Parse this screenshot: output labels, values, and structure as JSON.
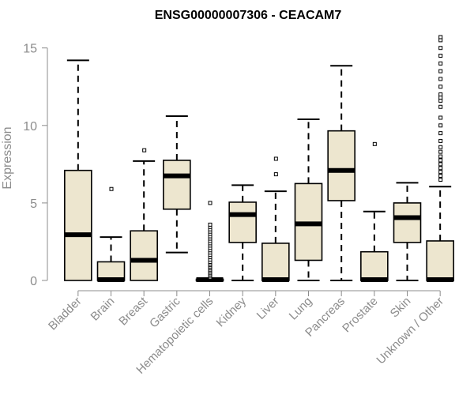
{
  "chart_data": {
    "type": "boxplot",
    "title": "ENSG00000007306 - CEACAM7",
    "xlabel": "",
    "ylabel": "Expression",
    "ylim": [
      0,
      15.8
    ],
    "yticks": [
      0,
      5,
      10,
      15
    ],
    "grid": false,
    "box_fill": "#ede6cf",
    "outline_color": "#000000",
    "axis_color": "#8c8c8c",
    "categories": [
      "Bladder",
      "Brain",
      "Breast",
      "Gastric",
      "Hematopoietic cells",
      "Kidney",
      "Liver",
      "Lung",
      "Pancreas",
      "Prostate",
      "Skin",
      "Unknown / Other"
    ],
    "boxes": [
      {
        "name": "Bladder",
        "whisker_low": 0,
        "q1": 0,
        "median": 2.95,
        "q3": 7.1,
        "whisker_high": 14.2,
        "outliers": []
      },
      {
        "name": "Brain",
        "whisker_low": 0,
        "q1": 0,
        "median": 0.05,
        "q3": 1.2,
        "whisker_high": 2.8,
        "outliers": [
          5.9
        ]
      },
      {
        "name": "Breast",
        "whisker_low": 0,
        "q1": 0,
        "median": 1.3,
        "q3": 3.2,
        "whisker_high": 7.7,
        "outliers": [
          8.4
        ]
      },
      {
        "name": "Gastric",
        "whisker_low": 1.8,
        "q1": 4.6,
        "median": 6.75,
        "q3": 7.75,
        "whisker_high": 10.6,
        "outliers": []
      },
      {
        "name": "Hematopoietic cells",
        "whisker_low": 0,
        "q1": 0,
        "median": 0.05,
        "q3": 0.08,
        "whisker_high": 0.15,
        "outliers": [
          0.2,
          0.3,
          0.4,
          0.5,
          0.6,
          0.7,
          0.8,
          0.9,
          1.0,
          1.1,
          1.2,
          1.35,
          1.5,
          1.65,
          1.8,
          1.95,
          2.1,
          2.25,
          2.4,
          2.55,
          2.7,
          2.85,
          3.0,
          3.15,
          3.3,
          3.45,
          3.6,
          5.0
        ]
      },
      {
        "name": "Kidney",
        "whisker_low": 0,
        "q1": 2.45,
        "median": 4.25,
        "q3": 5.05,
        "whisker_high": 6.15,
        "outliers": []
      },
      {
        "name": "Liver",
        "whisker_low": 0,
        "q1": 0,
        "median": 0.05,
        "q3": 2.4,
        "whisker_high": 5.75,
        "outliers": [
          6.85,
          7.85
        ]
      },
      {
        "name": "Lung",
        "whisker_low": 0,
        "q1": 1.3,
        "median": 3.65,
        "q3": 6.25,
        "whisker_high": 10.4,
        "outliers": []
      },
      {
        "name": "Pancreas",
        "whisker_low": 0,
        "q1": 5.15,
        "median": 7.1,
        "q3": 9.65,
        "whisker_high": 13.85,
        "outliers": []
      },
      {
        "name": "Prostate",
        "whisker_low": 0,
        "q1": 0,
        "median": 0.05,
        "q3": 1.85,
        "whisker_high": 4.45,
        "outliers": [
          8.8
        ]
      },
      {
        "name": "Skin",
        "whisker_low": 0,
        "q1": 2.45,
        "median": 4.05,
        "q3": 5.0,
        "whisker_high": 6.3,
        "outliers": []
      },
      {
        "name": "Unknown / Other",
        "whisker_low": 0,
        "q1": 0,
        "median": 0.05,
        "q3": 2.55,
        "whisker_high": 6.05,
        "outliers": [
          6.5,
          6.75,
          7.0,
          7.25,
          7.5,
          7.75,
          8.0,
          8.3,
          8.6,
          9.0,
          9.5,
          10.0,
          10.5,
          11.2,
          11.6,
          11.8,
          12.0,
          12.5,
          13.0,
          13.5,
          14.0,
          14.5,
          15.0,
          15.5,
          15.7
        ]
      }
    ]
  }
}
